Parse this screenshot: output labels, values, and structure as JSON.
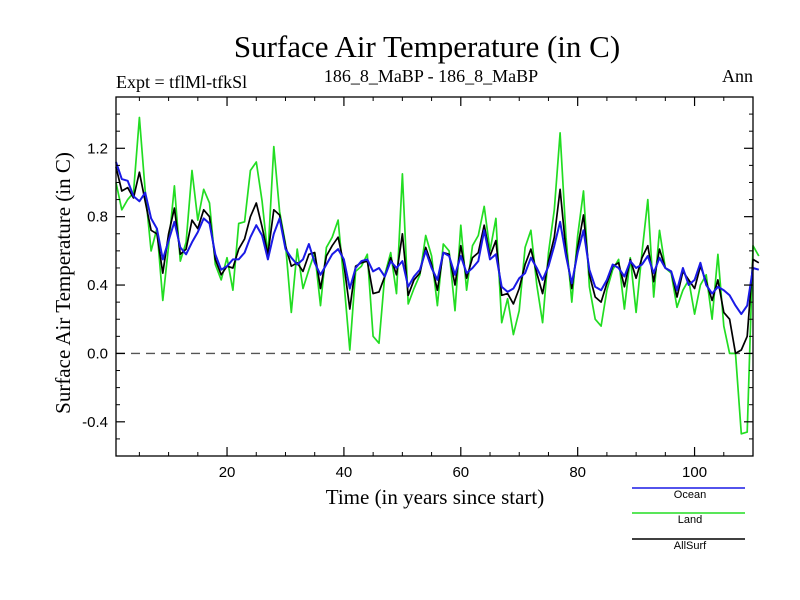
{
  "chart_data": {
    "type": "line",
    "title": "Surface Air Temperature (in C)",
    "subtitle_left": "Expt = tflMl-tfkSl",
    "subtitle_center": "186_8_MaBP - 186_8_MaBP",
    "subtitle_right": "Ann",
    "xlabel": "Time (in years since start)",
    "ylabel": "Surface Air Temperature (in C)",
    "xlim": [
      1,
      110
    ],
    "ylim": [
      -0.6,
      1.5
    ],
    "x_ticks": [
      20,
      40,
      60,
      80,
      100
    ],
    "x_tick_labels": [
      "20",
      "40",
      "60",
      "80",
      "100"
    ],
    "y_ticks": [
      -0.4,
      0.0,
      0.4,
      0.8,
      1.2
    ],
    "y_tick_labels": [
      "-0.4",
      "0.0",
      "0.4",
      "0.8",
      "1.2"
    ],
    "reference_line": 0.0,
    "legend": [
      "Ocean",
      "Land",
      "AllSurf"
    ],
    "series": [
      {
        "name": "Land",
        "color": "#22dd22",
        "values": [
          1.0,
          0.84,
          0.9,
          0.94,
          1.38,
          0.95,
          0.6,
          0.73,
          0.31,
          0.63,
          0.98,
          0.54,
          0.65,
          1.07,
          0.78,
          0.96,
          0.88,
          0.52,
          0.43,
          0.56,
          0.37,
          0.76,
          0.77,
          1.07,
          1.12,
          0.89,
          0.57,
          1.21,
          0.83,
          0.64,
          0.24,
          0.61,
          0.38,
          0.49,
          0.59,
          0.28,
          0.62,
          0.68,
          0.78,
          0.42,
          0.02,
          0.48,
          0.51,
          0.58,
          0.1,
          0.06,
          0.46,
          0.59,
          0.35,
          1.05,
          0.29,
          0.38,
          0.46,
          0.69,
          0.57,
          0.28,
          0.64,
          0.6,
          0.25,
          0.75,
          0.37,
          0.63,
          0.69,
          0.86,
          0.6,
          0.79,
          0.18,
          0.32,
          0.11,
          0.25,
          0.62,
          0.72,
          0.4,
          0.18,
          0.59,
          0.84,
          1.29,
          0.68,
          0.3,
          0.69,
          0.95,
          0.39,
          0.2,
          0.16,
          0.37,
          0.49,
          0.55,
          0.26,
          0.56,
          0.24,
          0.59,
          0.9,
          0.33,
          0.72,
          0.5,
          0.47,
          0.27,
          0.37,
          0.43,
          0.23,
          0.4,
          0.46,
          0.2,
          0.58,
          0.16,
          0.0,
          0.0,
          -0.47,
          -0.46,
          0.63,
          0.57
        ]
      },
      {
        "name": "AllSurf",
        "color": "#000000",
        "values": [
          1.09,
          0.95,
          0.97,
          0.91,
          1.06,
          0.89,
          0.72,
          0.7,
          0.47,
          0.7,
          0.85,
          0.58,
          0.61,
          0.78,
          0.73,
          0.84,
          0.8,
          0.55,
          0.46,
          0.51,
          0.5,
          0.61,
          0.67,
          0.8,
          0.88,
          0.74,
          0.58,
          0.84,
          0.81,
          0.63,
          0.51,
          0.53,
          0.48,
          0.58,
          0.59,
          0.38,
          0.57,
          0.63,
          0.68,
          0.52,
          0.26,
          0.51,
          0.53,
          0.54,
          0.35,
          0.36,
          0.45,
          0.56,
          0.46,
          0.7,
          0.34,
          0.43,
          0.47,
          0.62,
          0.52,
          0.37,
          0.59,
          0.58,
          0.4,
          0.63,
          0.44,
          0.56,
          0.59,
          0.75,
          0.57,
          0.66,
          0.34,
          0.35,
          0.29,
          0.38,
          0.52,
          0.61,
          0.47,
          0.35,
          0.54,
          0.68,
          0.96,
          0.6,
          0.38,
          0.62,
          0.81,
          0.46,
          0.33,
          0.3,
          0.41,
          0.51,
          0.53,
          0.39,
          0.55,
          0.44,
          0.56,
          0.63,
          0.42,
          0.61,
          0.5,
          0.48,
          0.33,
          0.48,
          0.43,
          0.38,
          0.51,
          0.42,
          0.31,
          0.43,
          0.24,
          0.2,
          0.0,
          0.02,
          0.1,
          0.55,
          0.53
        ]
      },
      {
        "name": "Ocean",
        "color": "#1a1ae6",
        "values": [
          1.12,
          1.02,
          1.01,
          0.92,
          0.89,
          0.94,
          0.79,
          0.73,
          0.55,
          0.66,
          0.77,
          0.62,
          0.58,
          0.65,
          0.71,
          0.79,
          0.76,
          0.58,
          0.49,
          0.51,
          0.55,
          0.55,
          0.59,
          0.68,
          0.75,
          0.69,
          0.55,
          0.7,
          0.79,
          0.61,
          0.56,
          0.52,
          0.55,
          0.64,
          0.53,
          0.46,
          0.52,
          0.58,
          0.61,
          0.55,
          0.38,
          0.5,
          0.54,
          0.55,
          0.48,
          0.5,
          0.45,
          0.54,
          0.5,
          0.54,
          0.39,
          0.45,
          0.49,
          0.6,
          0.5,
          0.43,
          0.59,
          0.57,
          0.46,
          0.57,
          0.47,
          0.5,
          0.54,
          0.72,
          0.55,
          0.58,
          0.39,
          0.36,
          0.38,
          0.44,
          0.47,
          0.56,
          0.5,
          0.43,
          0.51,
          0.63,
          0.77,
          0.57,
          0.41,
          0.59,
          0.72,
          0.49,
          0.39,
          0.37,
          0.43,
          0.52,
          0.5,
          0.45,
          0.54,
          0.5,
          0.52,
          0.57,
          0.47,
          0.56,
          0.5,
          0.48,
          0.37,
          0.5,
          0.4,
          0.43,
          0.53,
          0.4,
          0.35,
          0.39,
          0.37,
          0.34,
          0.28,
          0.23,
          0.28,
          0.5,
          0.49
        ]
      }
    ]
  }
}
